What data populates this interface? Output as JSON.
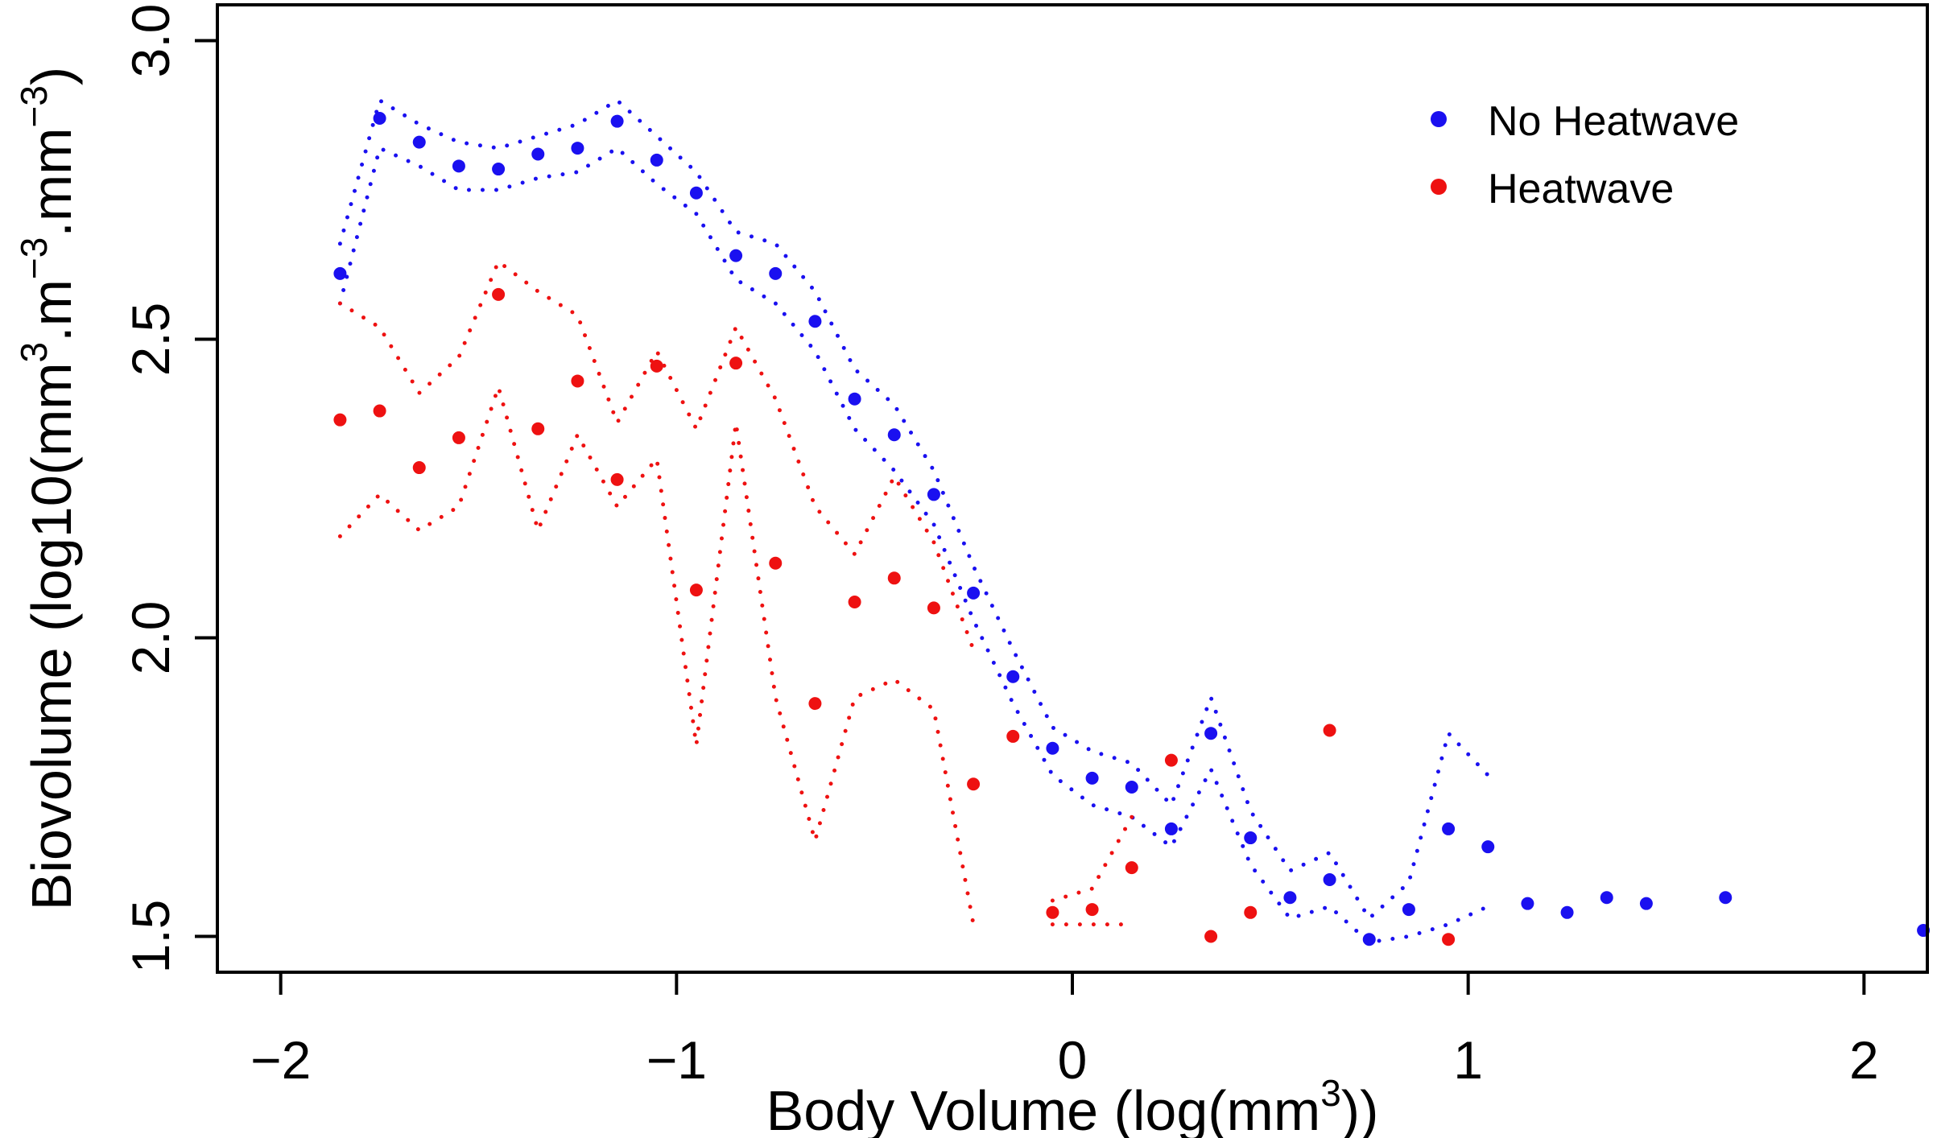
{
  "chart_data": {
    "type": "scatter",
    "xlabel_main": "Body Volume (log(mm",
    "xlabel_sup": "3",
    "xlabel_end": "))",
    "ylabel_parts": [
      "Biovolume (log10(mm",
      "3",
      ".m",
      "−3",
      ".mm",
      "−3",
      ")"
    ],
    "xlim": [
      -2.16,
      2.16
    ],
    "ylim": [
      1.44,
      3.06
    ],
    "x_ticks": [
      -2,
      -1,
      0,
      1,
      2
    ],
    "x_tick_labels": [
      "−2",
      "−1",
      "0",
      "1",
      "2"
    ],
    "y_ticks": [
      1.5,
      2.0,
      2.5,
      3.0
    ],
    "y_tick_labels": [
      "1.5",
      "2.0",
      "2.5",
      "3.0"
    ],
    "legend_position": "top-right",
    "colors": {
      "no_heatwave": "#1a10f0",
      "heatwave": "#ee1111"
    },
    "series": [
      {
        "name": "No Heatwave",
        "color": "#1a10f0",
        "points": [
          [
            -1.85,
            2.61
          ],
          [
            -1.75,
            2.87
          ],
          [
            -1.65,
            2.83
          ],
          [
            -1.55,
            2.79
          ],
          [
            -1.45,
            2.785
          ],
          [
            -1.35,
            2.81
          ],
          [
            -1.25,
            2.82
          ],
          [
            -1.15,
            2.865
          ],
          [
            -1.05,
            2.8
          ],
          [
            -0.95,
            2.745
          ],
          [
            -0.85,
            2.64
          ],
          [
            -0.75,
            2.61
          ],
          [
            -0.65,
            2.53
          ],
          [
            -0.55,
            2.4
          ],
          [
            -0.45,
            2.34
          ],
          [
            -0.35,
            2.24
          ],
          [
            -0.25,
            2.075
          ],
          [
            -0.15,
            1.935
          ],
          [
            -0.05,
            1.815
          ],
          [
            0.05,
            1.765
          ],
          [
            0.15,
            1.75
          ],
          [
            0.25,
            1.68
          ],
          [
            0.35,
            1.84
          ],
          [
            0.45,
            1.665
          ],
          [
            0.55,
            1.565
          ],
          [
            0.65,
            1.595
          ],
          [
            0.75,
            1.495
          ],
          [
            0.85,
            1.545
          ],
          [
            0.95,
            1.68
          ],
          [
            1.05,
            1.65
          ],
          [
            1.15,
            1.555
          ],
          [
            1.25,
            1.54
          ],
          [
            1.35,
            1.565
          ],
          [
            1.45,
            1.555
          ],
          [
            1.65,
            1.565
          ],
          [
            2.15,
            1.51
          ]
        ],
        "upper_band": [
          [
            -1.85,
            2.66
          ],
          [
            -1.75,
            2.9
          ],
          [
            -1.65,
            2.86
          ],
          [
            -1.55,
            2.83
          ],
          [
            -1.45,
            2.82
          ],
          [
            -1.35,
            2.84
          ],
          [
            -1.25,
            2.86
          ],
          [
            -1.15,
            2.9
          ],
          [
            -1.05,
            2.84
          ],
          [
            -0.95,
            2.78
          ],
          [
            -0.85,
            2.68
          ],
          [
            -0.75,
            2.66
          ],
          [
            -0.65,
            2.58
          ],
          [
            -0.55,
            2.45
          ],
          [
            -0.45,
            2.39
          ],
          [
            -0.35,
            2.28
          ],
          [
            -0.25,
            2.12
          ],
          [
            -0.15,
            1.98
          ],
          [
            -0.05,
            1.85
          ],
          [
            0.05,
            1.81
          ],
          [
            0.15,
            1.79
          ],
          [
            0.25,
            1.72
          ],
          [
            0.35,
            1.9
          ],
          [
            0.45,
            1.71
          ],
          [
            0.55,
            1.61
          ],
          [
            0.65,
            1.64
          ],
          [
            0.75,
            1.53
          ],
          [
            0.85,
            1.59
          ],
          [
            0.95,
            1.84
          ],
          [
            1.05,
            1.77
          ]
        ],
        "lower_band": [
          [
            -1.85,
            2.56
          ],
          [
            -1.75,
            2.82
          ],
          [
            -1.65,
            2.79
          ],
          [
            -1.55,
            2.75
          ],
          [
            -1.45,
            2.75
          ],
          [
            -1.35,
            2.77
          ],
          [
            -1.25,
            2.78
          ],
          [
            -1.15,
            2.82
          ],
          [
            -1.05,
            2.76
          ],
          [
            -0.95,
            2.71
          ],
          [
            -0.85,
            2.6
          ],
          [
            -0.75,
            2.56
          ],
          [
            -0.65,
            2.48
          ],
          [
            -0.55,
            2.35
          ],
          [
            -0.45,
            2.28
          ],
          [
            -0.35,
            2.19
          ],
          [
            -0.25,
            2.03
          ],
          [
            -0.15,
            1.89
          ],
          [
            -0.05,
            1.77
          ],
          [
            0.05,
            1.72
          ],
          [
            0.15,
            1.7
          ],
          [
            0.25,
            1.65
          ],
          [
            0.35,
            1.78
          ],
          [
            0.45,
            1.62
          ],
          [
            0.55,
            1.53
          ],
          [
            0.65,
            1.55
          ],
          [
            0.75,
            1.49
          ],
          [
            0.85,
            1.5
          ],
          [
            0.95,
            1.52
          ],
          [
            1.05,
            1.55
          ]
        ]
      },
      {
        "name": "Heatwave",
        "color": "#ee1111",
        "points": [
          [
            -1.85,
            2.365
          ],
          [
            -1.75,
            2.38
          ],
          [
            -1.65,
            2.285
          ],
          [
            -1.55,
            2.335
          ],
          [
            -1.45,
            2.575
          ],
          [
            -1.35,
            2.35
          ],
          [
            -1.25,
            2.43
          ],
          [
            -1.15,
            2.265
          ],
          [
            -1.05,
            2.455
          ],
          [
            -0.95,
            2.08
          ],
          [
            -0.85,
            2.46
          ],
          [
            -0.75,
            2.125
          ],
          [
            -0.65,
            1.89
          ],
          [
            -0.55,
            2.06
          ],
          [
            -0.45,
            2.1
          ],
          [
            -0.35,
            2.05
          ],
          [
            -0.25,
            1.755
          ],
          [
            -0.15,
            1.835
          ],
          [
            -0.05,
            1.54
          ],
          [
            0.05,
            1.545
          ],
          [
            0.15,
            1.615
          ],
          [
            0.25,
            1.795
          ],
          [
            0.35,
            1.5
          ],
          [
            0.45,
            1.54
          ],
          [
            0.65,
            1.845
          ],
          [
            0.95,
            1.495
          ]
        ],
        "upper_band": [
          [
            -1.85,
            2.56
          ],
          [
            -1.75,
            2.52
          ],
          [
            -1.65,
            2.41
          ],
          [
            -1.55,
            2.47
          ],
          [
            -1.45,
            2.63
          ],
          [
            -1.35,
            2.58
          ],
          [
            -1.25,
            2.54
          ],
          [
            -1.15,
            2.36
          ],
          [
            -1.05,
            2.48
          ],
          [
            -0.95,
            2.35
          ],
          [
            -0.85,
            2.52
          ],
          [
            -0.75,
            2.4
          ],
          [
            -0.65,
            2.22
          ],
          [
            -0.55,
            2.14
          ],
          [
            -0.45,
            2.27
          ],
          [
            -0.35,
            2.16
          ],
          [
            -0.25,
            1.98
          ]
        ],
        "lower_band": [
          [
            -1.85,
            2.17
          ],
          [
            -1.75,
            2.24
          ],
          [
            -1.65,
            2.18
          ],
          [
            -1.55,
            2.22
          ],
          [
            -1.45,
            2.42
          ],
          [
            -1.35,
            2.18
          ],
          [
            -1.25,
            2.34
          ],
          [
            -1.15,
            2.22
          ],
          [
            -1.05,
            2.3
          ],
          [
            -0.95,
            1.82
          ],
          [
            -0.85,
            2.36
          ],
          [
            -0.75,
            1.9
          ],
          [
            -0.65,
            1.66
          ],
          [
            -0.55,
            1.9
          ],
          [
            -0.45,
            1.93
          ],
          [
            -0.35,
            1.88
          ],
          [
            -0.25,
            1.52
          ]
        ],
        "upper_band_2": [
          [
            -0.05,
            1.56
          ],
          [
            0.05,
            1.58
          ],
          [
            0.15,
            1.7
          ]
        ],
        "lower_band_2": [
          [
            -0.05,
            1.52
          ],
          [
            0.05,
            1.52
          ],
          [
            0.15,
            1.52
          ]
        ]
      }
    ]
  }
}
